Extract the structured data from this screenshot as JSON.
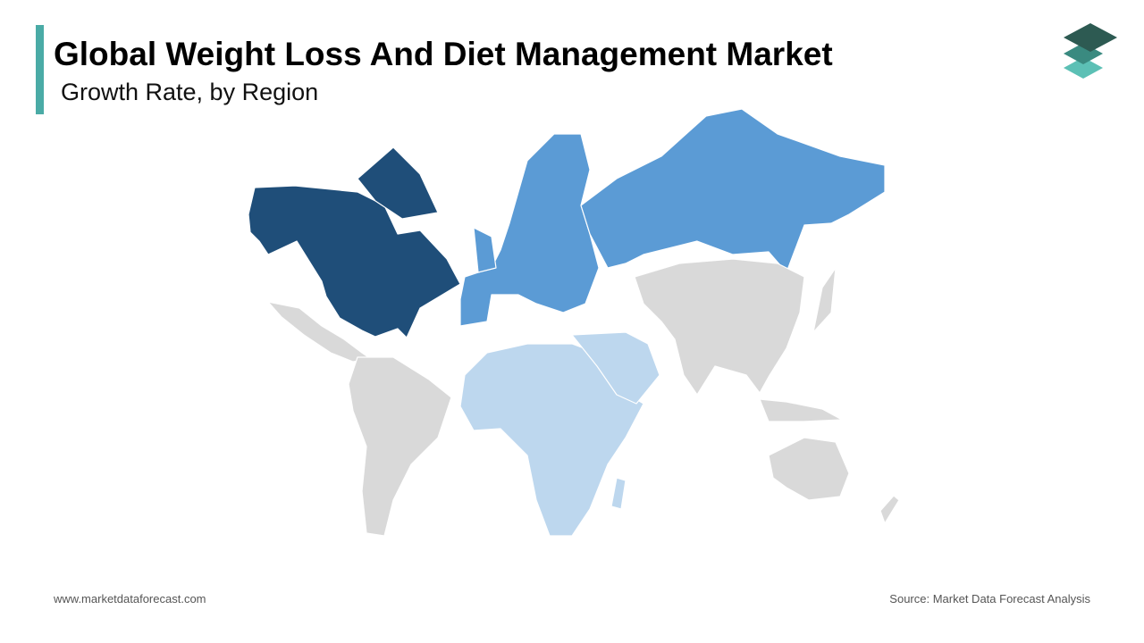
{
  "header": {
    "title": "Global Weight Loss And Diet Management Market",
    "subtitle": "Growth Rate, by Region"
  },
  "footer": {
    "website": "www.marketdataforecast.com",
    "source": "Source: Market Data Forecast Analysis"
  }
}
